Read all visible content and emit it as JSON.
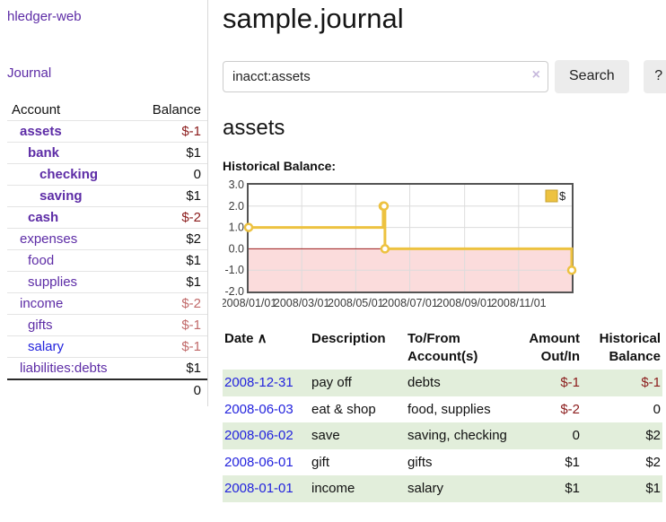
{
  "app": {
    "title": "hledger-web",
    "nav": {
      "journal": "Journal"
    }
  },
  "sidebar": {
    "columns": {
      "account": "Account",
      "balance": "Balance"
    },
    "accounts": [
      {
        "name": "assets",
        "balance": "$-1",
        "indent": 1,
        "bold": true,
        "name_color": "purple",
        "balance_color": "neg-dark"
      },
      {
        "name": "bank",
        "balance": "$1",
        "indent": 2,
        "bold": true,
        "name_color": "purple",
        "balance_color": "plain"
      },
      {
        "name": "checking",
        "balance": "0",
        "indent": 3,
        "bold": true,
        "name_color": "purple",
        "balance_color": "plain"
      },
      {
        "name": "saving",
        "balance": "$1",
        "indent": 3,
        "bold": true,
        "name_color": "purple",
        "balance_color": "plain"
      },
      {
        "name": "cash",
        "balance": "$-2",
        "indent": 2,
        "bold": true,
        "name_color": "purple",
        "balance_color": "neg-dark"
      },
      {
        "name": "expenses",
        "balance": "$2",
        "indent": 1,
        "bold": false,
        "name_color": "purple",
        "balance_color": "plain"
      },
      {
        "name": "food",
        "balance": "$1",
        "indent": 2,
        "bold": false,
        "name_color": "purple",
        "balance_color": "plain"
      },
      {
        "name": "supplies",
        "balance": "$1",
        "indent": 2,
        "bold": false,
        "name_color": "purple",
        "balance_color": "plain"
      },
      {
        "name": "income",
        "balance": "$-2",
        "indent": 1,
        "bold": false,
        "name_color": "purple",
        "balance_color": "neg-light"
      },
      {
        "name": "gifts",
        "balance": "$-1",
        "indent": 2,
        "bold": false,
        "name_color": "purple",
        "balance_color": "neg-light"
      },
      {
        "name": "salary",
        "balance": "$-1",
        "indent": 2,
        "bold": false,
        "name_color": "blue",
        "balance_color": "neg-light"
      },
      {
        "name": "liabilities:debts",
        "balance": "$1",
        "indent": 1,
        "bold": false,
        "name_color": "purple",
        "balance_color": "plain"
      }
    ],
    "total": "0"
  },
  "main": {
    "title": "sample.journal",
    "search": {
      "value": "inacct:assets",
      "clear_icon": "×",
      "search_button": "Search",
      "help_button": "?"
    },
    "account_heading": "assets",
    "chart_heading": "Historical Balance:"
  },
  "chart_data": {
    "type": "line",
    "steps": true,
    "title": "Historical Balance",
    "series": [
      {
        "name": "$",
        "color": "#edc240",
        "points": [
          {
            "date": "2008-01-01",
            "day": 0,
            "value": 1
          },
          {
            "date": "2008-06-01",
            "day": 152,
            "value": 2
          },
          {
            "date": "2008-06-02",
            "day": 153,
            "value": 2
          },
          {
            "date": "2008-06-03",
            "day": 154,
            "value": 0
          },
          {
            "date": "2008-12-31",
            "day": 365,
            "value": -1
          }
        ]
      }
    ],
    "xrange_days": [
      0,
      365
    ],
    "ylim": [
      -2,
      3
    ],
    "yticks": [
      {
        "label": "3.0",
        "value": 3
      },
      {
        "label": "2.0",
        "value": 2
      },
      {
        "label": "1.0",
        "value": 1
      },
      {
        "label": "0.0",
        "value": 0
      },
      {
        "label": "-1.0",
        "value": -1
      },
      {
        "label": "-2.0",
        "value": -2
      }
    ],
    "xticks": [
      {
        "label": "2008/01/01",
        "day": 0
      },
      {
        "label": "2008/03/01",
        "day": 60
      },
      {
        "label": "2008/05/01",
        "day": 121
      },
      {
        "label": "2008/07/01",
        "day": 182
      },
      {
        "label": "2008/09/01",
        "day": 244
      },
      {
        "label": "2008/11/01",
        "day": 305
      }
    ],
    "grid": true,
    "legend": {
      "label": "$",
      "position": "top-right"
    },
    "colors": {
      "negative_region": "#fbdcdc",
      "zero_line": "#9b1c1c",
      "grid_line": "#dcdcdc",
      "border": "#545454",
      "marker_fill": "#ffffff",
      "legend_swatch_border": "#c7a12e"
    }
  },
  "register": {
    "columns": [
      {
        "label": "Date",
        "align": "left",
        "sorted": true
      },
      {
        "label": "Description",
        "align": "left"
      },
      {
        "label": "To/From Account(s)",
        "align": "left"
      },
      {
        "label": "Amount Out/In",
        "align": "right"
      },
      {
        "label": "Historical Balance",
        "align": "right"
      }
    ],
    "sort_icon": "∧",
    "rows": [
      {
        "date": "2008-12-31",
        "description": "pay off",
        "accounts": "debts",
        "amount": "$-1",
        "amount_color": "neg-dark",
        "balance": "$-1",
        "balance_color": "neg-dark",
        "highlight": true
      },
      {
        "date": "2008-06-03",
        "description": "eat & shop",
        "accounts": "food, supplies",
        "amount": "$-2",
        "amount_color": "neg-dark",
        "balance": "0",
        "balance_color": "plain",
        "highlight": false
      },
      {
        "date": "2008-06-02",
        "description": "save",
        "accounts": "saving, checking",
        "amount": "0",
        "amount_color": "plain",
        "balance": "$2",
        "balance_color": "plain",
        "highlight": true
      },
      {
        "date": "2008-06-01",
        "description": "gift",
        "accounts": "gifts",
        "amount": "$1",
        "amount_color": "plain",
        "balance": "$2",
        "balance_color": "plain",
        "highlight": false
      },
      {
        "date": "2008-01-01",
        "description": "income",
        "accounts": "salary",
        "amount": "$1",
        "amount_color": "plain",
        "balance": "$1",
        "balance_color": "plain",
        "highlight": true
      }
    ]
  },
  "colors": {
    "link_purple": "#5d2ca6",
    "link_blue": "#2323dd",
    "negative_dark": "#8b1c1c",
    "negative_light": "#c16a6a",
    "row_highlight": "#e2eedb",
    "accent_yellow": "#edc240"
  }
}
